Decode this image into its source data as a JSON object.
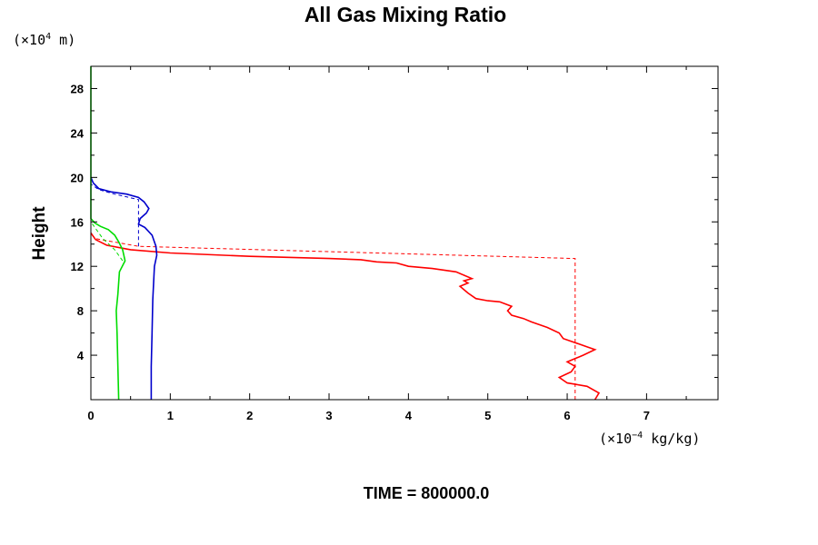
{
  "chart_data": {
    "type": "line",
    "title": "All Gas Mixing Ratio",
    "ylabel": "Height",
    "y_unit": {
      "prefix": "(×10",
      "exp": "4",
      "suffix": " m)"
    },
    "x_unit": {
      "prefix": "(×10",
      "exp": "−4",
      "suffix": " kg/kg)"
    },
    "xlim": [
      0,
      7.9
    ],
    "ylim": [
      0,
      30
    ],
    "x_ticks": [
      0,
      1,
      2,
      3,
      4,
      5,
      6,
      7
    ],
    "y_ticks": [
      4,
      8,
      12,
      16,
      20,
      24,
      28
    ],
    "footer": "TIME = 800000.0",
    "colors": {
      "red": "#ff0000",
      "blue": "#0000cc",
      "green": "#00dd00"
    },
    "series": [
      {
        "color": "red",
        "style": "solid",
        "points": [
          [
            6.35,
            0
          ],
          [
            6.4,
            0.6
          ],
          [
            6.25,
            1.2
          ],
          [
            6.0,
            1.5
          ],
          [
            5.9,
            2.0
          ],
          [
            6.05,
            2.5
          ],
          [
            6.1,
            3.0
          ],
          [
            6.0,
            3.4
          ],
          [
            6.2,
            4.0
          ],
          [
            6.35,
            4.5
          ],
          [
            6.15,
            5.0
          ],
          [
            5.95,
            5.5
          ],
          [
            5.9,
            6.0
          ],
          [
            5.75,
            6.5
          ],
          [
            5.55,
            7.0
          ],
          [
            5.45,
            7.3
          ],
          [
            5.3,
            7.6
          ],
          [
            5.25,
            8.0
          ],
          [
            5.3,
            8.4
          ],
          [
            5.15,
            8.8
          ],
          [
            5.0,
            8.9
          ],
          [
            4.85,
            9.1
          ],
          [
            4.75,
            9.6
          ],
          [
            4.65,
            10.2
          ],
          [
            4.75,
            10.5
          ],
          [
            4.7,
            10.7
          ],
          [
            4.8,
            10.9
          ],
          [
            4.7,
            11.2
          ],
          [
            4.6,
            11.5
          ],
          [
            4.3,
            11.8
          ],
          [
            4.0,
            12.0
          ],
          [
            3.85,
            12.3
          ],
          [
            3.6,
            12.4
          ],
          [
            3.4,
            12.6
          ],
          [
            3.0,
            12.7
          ],
          [
            2.0,
            12.9
          ],
          [
            1.0,
            13.2
          ],
          [
            0.5,
            13.5
          ],
          [
            0.2,
            13.9
          ],
          [
            0.06,
            14.4
          ],
          [
            0.0,
            15.0
          ]
        ]
      },
      {
        "color": "red",
        "style": "dashed",
        "points": [
          [
            6.1,
            0
          ],
          [
            6.1,
            12.7
          ],
          [
            0.6,
            13.8
          ],
          [
            0.05,
            14.5
          ],
          [
            0.0,
            15.0
          ]
        ]
      },
      {
        "color": "blue",
        "style": "solid",
        "points": [
          [
            0.76,
            0
          ],
          [
            0.76,
            3.0
          ],
          [
            0.77,
            6.0
          ],
          [
            0.78,
            9.0
          ],
          [
            0.8,
            12.0
          ],
          [
            0.83,
            13.0
          ],
          [
            0.82,
            13.8
          ],
          [
            0.77,
            14.8
          ],
          [
            0.68,
            15.5
          ],
          [
            0.6,
            15.8
          ],
          [
            0.62,
            16.3
          ],
          [
            0.7,
            16.8
          ],
          [
            0.73,
            17.2
          ],
          [
            0.67,
            17.8
          ],
          [
            0.6,
            18.2
          ],
          [
            0.45,
            18.5
          ],
          [
            0.25,
            18.7
          ],
          [
            0.1,
            19.0
          ],
          [
            0.03,
            19.5
          ],
          [
            0.0,
            20.0
          ]
        ]
      },
      {
        "color": "blue",
        "style": "dashed",
        "points": [
          [
            0.6,
            13.8
          ],
          [
            0.6,
            18.0
          ],
          [
            0.3,
            18.5
          ],
          [
            0.1,
            18.9
          ],
          [
            0.0,
            19.4
          ]
        ]
      },
      {
        "color": "green",
        "style": "solid",
        "points": [
          [
            0.35,
            0
          ],
          [
            0.34,
            3.0
          ],
          [
            0.33,
            6.0
          ],
          [
            0.32,
            8.0
          ],
          [
            0.34,
            9.5
          ],
          [
            0.36,
            11.5
          ],
          [
            0.43,
            12.5
          ],
          [
            0.4,
            13.5
          ],
          [
            0.35,
            14.2
          ],
          [
            0.3,
            14.8
          ],
          [
            0.22,
            15.3
          ],
          [
            0.12,
            15.6
          ],
          [
            0.05,
            15.9
          ],
          [
            0.0,
            16.3
          ],
          [
            0.0,
            30.0
          ]
        ]
      },
      {
        "color": "green",
        "style": "dashed",
        "points": [
          [
            0.4,
            12.5
          ],
          [
            0.3,
            13.5
          ],
          [
            0.15,
            14.5
          ],
          [
            0.05,
            15.5
          ],
          [
            0.0,
            16.0
          ]
        ]
      }
    ]
  }
}
